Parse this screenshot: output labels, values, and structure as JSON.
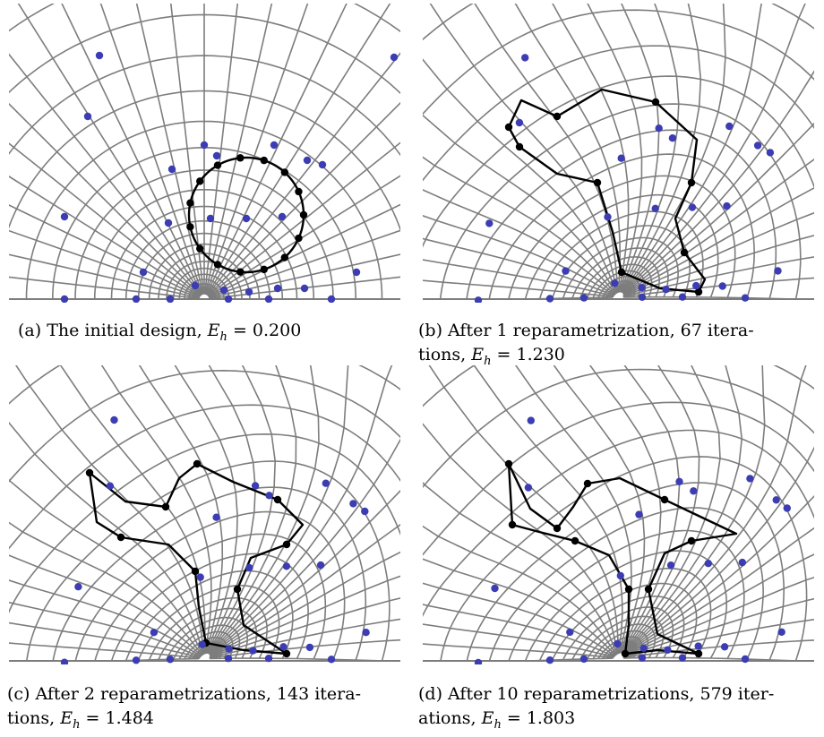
{
  "colors": {
    "grid": "#7d7d7d",
    "interior_point": "#3d3db3",
    "boundary_point": "#000000",
    "boundary_curve": "#000000",
    "background": "#ffffff"
  },
  "panels": [
    {
      "id": "a",
      "kind": "circle",
      "caption": {
        "lead": "(a) The initial design,",
        "energy": "E",
        "sub": "h",
        "value": "= 0.200"
      }
    },
    {
      "id": "b",
      "kind": "warp1",
      "caption": {
        "lead": "(b)  After  1  reparametrization,  67  itera-",
        "line2": "tions,",
        "energy": "E",
        "sub": "h",
        "value": "= 1.230"
      }
    },
    {
      "id": "c",
      "kind": "warp2",
      "caption": {
        "lead": "(c) After 2 reparametrizations, 143 itera-",
        "line2": "tions,",
        "energy": "E",
        "sub": "h",
        "value": "= 1.484"
      }
    },
    {
      "id": "d",
      "kind": "warp3",
      "caption": {
        "lead": "(d) After 10 reparametrizations, 579 iter-",
        "line2": "ations,",
        "energy": "E",
        "sub": "h",
        "value": "= 1.803"
      }
    }
  ]
}
